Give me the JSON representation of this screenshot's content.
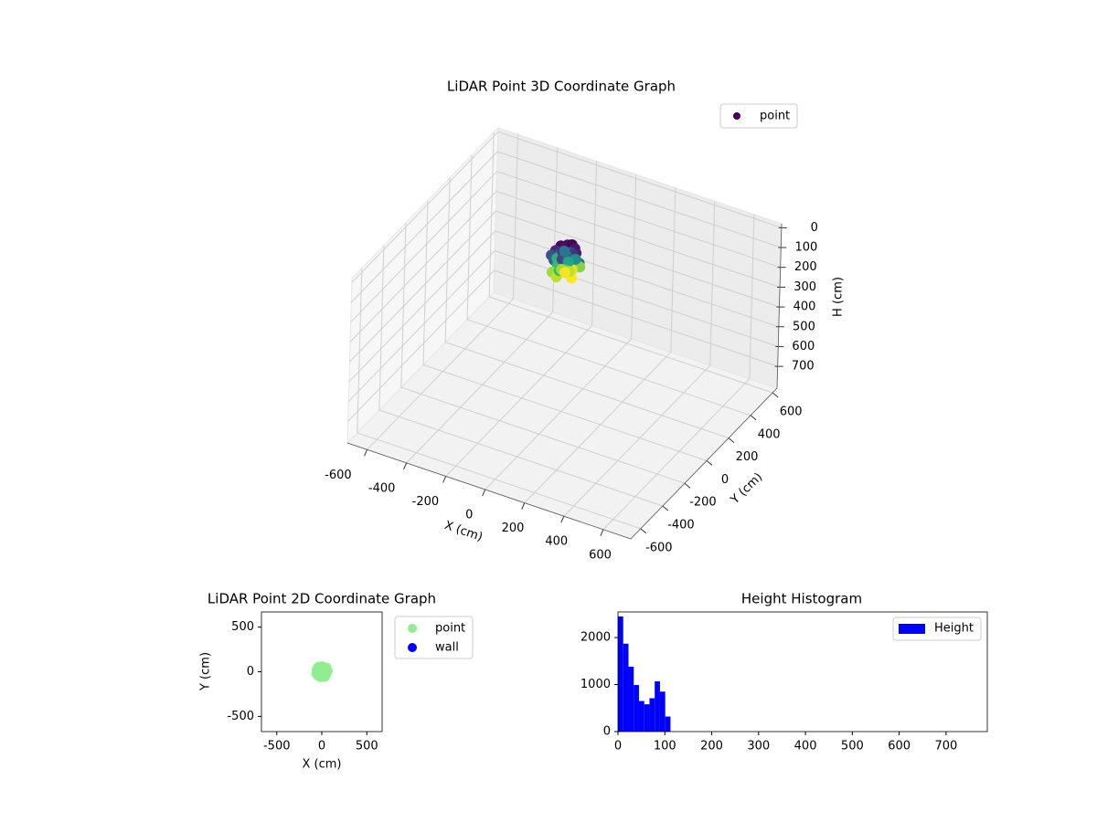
{
  "chart_data": [
    {
      "type": "scatter3d",
      "title": "LiDAR Point 3D Coordinate Graph",
      "xlabel": "X (cm)",
      "ylabel": "Y (cm)",
      "zlabel": "H (cm)",
      "series": [
        {
          "name": "point",
          "colormap": "viridis",
          "x": [
            -40,
            -20,
            0,
            20,
            40,
            -50,
            -25,
            5,
            30,
            55,
            -60,
            -35,
            -10,
            15,
            45,
            65,
            -45,
            -15,
            10,
            35,
            -55,
            -30,
            0,
            25,
            50,
            -40,
            -10,
            20,
            45,
            -20,
            0,
            15,
            -35,
            30,
            5,
            -5,
            10,
            -15,
            20,
            0
          ],
          "y": [
            30,
            55,
            60,
            50,
            25,
            0,
            20,
            35,
            15,
            -5,
            -20,
            -40,
            -10,
            -30,
            -35,
            10,
            45,
            40,
            -50,
            -55,
            25,
            -15,
            5,
            -20,
            45,
            -45,
            -60,
            30,
            -20,
            10,
            -30,
            0,
            55,
            40,
            20,
            -45,
            -15,
            -5,
            5,
            0
          ],
          "h": [
            5,
            8,
            3,
            10,
            12,
            15,
            20,
            25,
            18,
            22,
            30,
            35,
            28,
            40,
            38,
            45,
            50,
            55,
            60,
            65,
            70,
            75,
            80,
            85,
            90,
            95,
            100,
            105,
            110,
            15,
            25,
            35,
            45,
            55,
            65,
            75,
            85,
            95,
            100,
            108
          ]
        }
      ],
      "xlim": [
        -700,
        740
      ],
      "ylim": [
        -690,
        640
      ],
      "zlim": [
        810,
        -20
      ],
      "xticks": [
        -600,
        -400,
        -200,
        0,
        200,
        400,
        600
      ],
      "yticks": [
        -600,
        -400,
        -200,
        0,
        200,
        400,
        600
      ],
      "zticks": [
        0,
        100,
        200,
        300,
        400,
        500,
        600,
        700
      ],
      "grid": true,
      "legend": "upper right"
    },
    {
      "type": "scatter",
      "title": "LiDAR Point 2D Coordinate Graph",
      "xlabel": "X (cm)",
      "ylabel": "Y (cm)",
      "series": [
        {
          "name": "point",
          "color": "#90ee90",
          "x": [
            -40,
            -20,
            0,
            20,
            40,
            -50,
            -25,
            5,
            30,
            55,
            -60,
            -35,
            -10,
            15,
            45,
            65,
            -45,
            -15,
            10,
            35,
            -55,
            -30,
            0,
            25,
            50,
            -40,
            -10,
            20,
            45,
            -20,
            0,
            15,
            -35,
            30,
            5,
            -5,
            10,
            -15,
            20,
            0
          ],
          "y": [
            30,
            55,
            60,
            50,
            25,
            0,
            20,
            35,
            15,
            -5,
            -20,
            -40,
            -10,
            -30,
            -35,
            10,
            45,
            40,
            -50,
            -55,
            25,
            -15,
            5,
            -20,
            45,
            -45,
            -60,
            30,
            -20,
            10,
            -30,
            0,
            55,
            40,
            20,
            -45,
            -15,
            -5,
            5,
            0
          ]
        },
        {
          "name": "wall",
          "color": "#0000ff",
          "x": [],
          "y": []
        }
      ],
      "xlim": [
        -670,
        670
      ],
      "ylim": [
        -670,
        670
      ],
      "xticks": [
        -500,
        0,
        500
      ],
      "yticks": [
        -500,
        0,
        500
      ],
      "grid": false,
      "legend": "outside upper right"
    },
    {
      "type": "histogram",
      "title": "Height Histogram",
      "bins": [
        0,
        11.2,
        22.4,
        33.6,
        44.8,
        56,
        67.2,
        78.4,
        89.6,
        100.8,
        112
      ],
      "series": [
        {
          "name": "Height",
          "color": "#0000ff",
          "values": [
            2450,
            1870,
            1380,
            990,
            650,
            580,
            710,
            1070,
            850,
            320
          ]
        }
      ],
      "xlim": [
        0,
        788
      ],
      "ylim": [
        0,
        2545
      ],
      "xticks": [
        0,
        100,
        200,
        300,
        400,
        500,
        600,
        700
      ],
      "yticks": [
        0,
        1000,
        2000
      ],
      "grid": false,
      "legend": "upper right"
    }
  ]
}
